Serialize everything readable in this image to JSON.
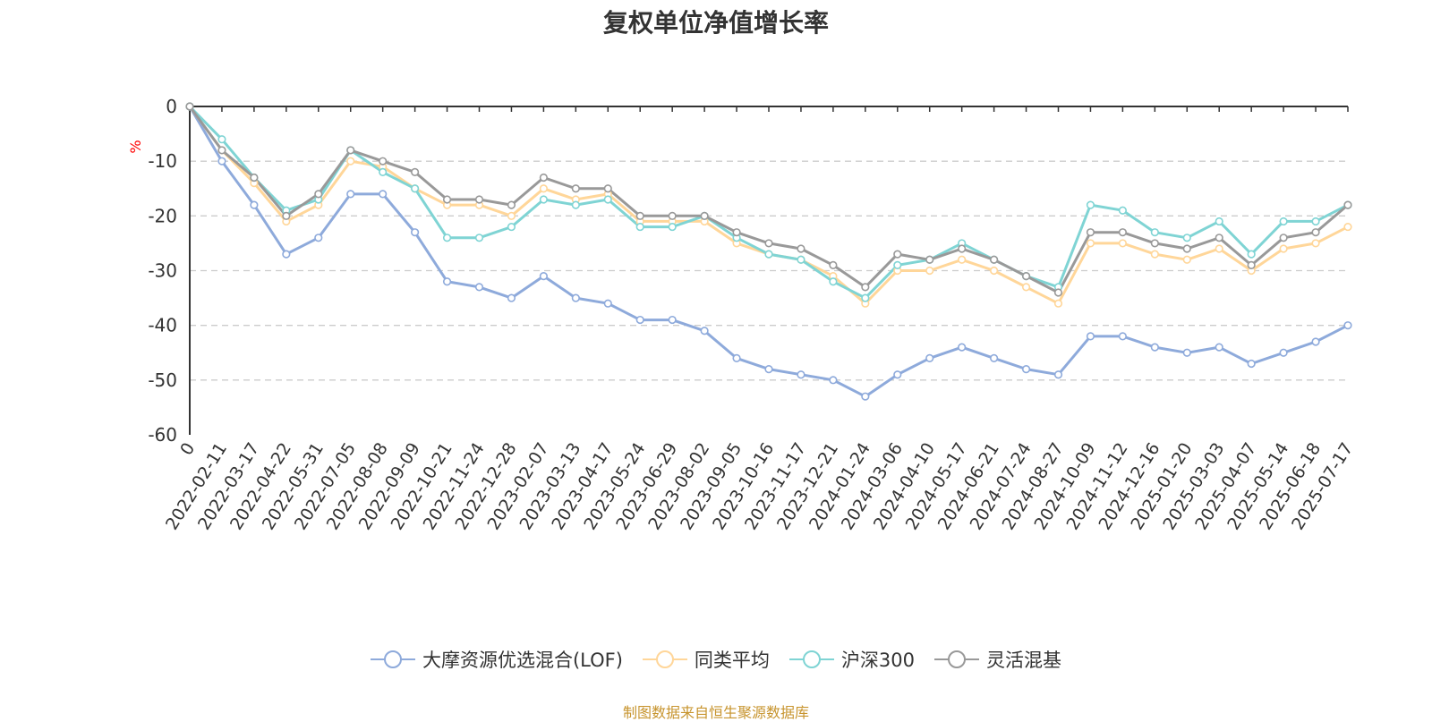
{
  "chart_data": {
    "type": "line",
    "title": "复权单位净值增长率",
    "ylabel": "%",
    "ylim": [
      -60,
      0
    ],
    "yticks": [
      0,
      -10,
      -20,
      -30,
      -40,
      -50,
      -60
    ],
    "grid": true,
    "legend_position": "bottom",
    "x_categories": [
      "0",
      "2022-02-11",
      "2022-03-17",
      "2022-04-22",
      "2022-05-31",
      "2022-07-05",
      "2022-08-08",
      "2022-09-09",
      "2022-10-21",
      "2022-11-24",
      "2022-12-28",
      "2023-02-07",
      "2023-03-13",
      "2023-04-17",
      "2023-05-24",
      "2023-06-29",
      "2023-08-02",
      "2023-09-05",
      "2023-10-16",
      "2023-11-17",
      "2023-12-21",
      "2024-01-24",
      "2024-03-06",
      "2024-04-10",
      "2024-05-17",
      "2024-06-21",
      "2024-07-24",
      "2024-08-27",
      "2024-10-09",
      "2024-11-12",
      "2024-12-16",
      "2025-01-20",
      "2025-03-03",
      "2025-04-07",
      "2025-05-14",
      "2025-06-18",
      "2025-07-17"
    ],
    "series": [
      {
        "name": "大摩资源优选混合(LOF)",
        "color": "#8eaadb",
        "values": [
          0,
          -10,
          -18,
          -27,
          -24,
          -16,
          -16,
          -23,
          -32,
          -33,
          -35,
          -31,
          -35,
          -36,
          -39,
          -39,
          -41,
          -46,
          -48,
          -49,
          -50,
          -53,
          -49,
          -46,
          -44,
          -46,
          -48,
          -49,
          -42,
          -42,
          -44,
          -45,
          -44,
          -47,
          -45,
          -43,
          -40
        ]
      },
      {
        "name": "同类平均",
        "color": "#ffd699",
        "values": [
          0,
          -8,
          -14,
          -21,
          -18,
          -10,
          -11,
          -15,
          -18,
          -18,
          -20,
          -15,
          -17,
          -16,
          -21,
          -21,
          -21,
          -25,
          -27,
          -28,
          -31,
          -36,
          -30,
          -30,
          -28,
          -30,
          -33,
          -36,
          -25,
          -25,
          -27,
          -28,
          -26,
          -30,
          -26,
          -25,
          -22
        ]
      },
      {
        "name": "沪深300",
        "color": "#7fd4d4",
        "values": [
          0,
          -6,
          -13,
          -19,
          -17,
          -8,
          -12,
          -15,
          -24,
          -24,
          -22,
          -17,
          -18,
          -17,
          -22,
          -22,
          -20,
          -24,
          -27,
          -28,
          -32,
          -35,
          -29,
          -28,
          -25,
          -28,
          -31,
          -33,
          -18,
          -19,
          -23,
          -24,
          -21,
          -27,
          -21,
          -21,
          -18
        ]
      },
      {
        "name": "灵活混基",
        "color": "#999999",
        "values": [
          0,
          -8,
          -13,
          -20,
          -16,
          -8,
          -10,
          -12,
          -17,
          -17,
          -18,
          -13,
          -15,
          -15,
          -20,
          -20,
          -20,
          -23,
          -25,
          -26,
          -29,
          -33,
          -27,
          -28,
          -26,
          -28,
          -31,
          -34,
          -23,
          -23,
          -25,
          -26,
          -24,
          -29,
          -24,
          -23,
          -18
        ]
      }
    ]
  },
  "source_note": "制图数据来自恒生聚源数据库"
}
